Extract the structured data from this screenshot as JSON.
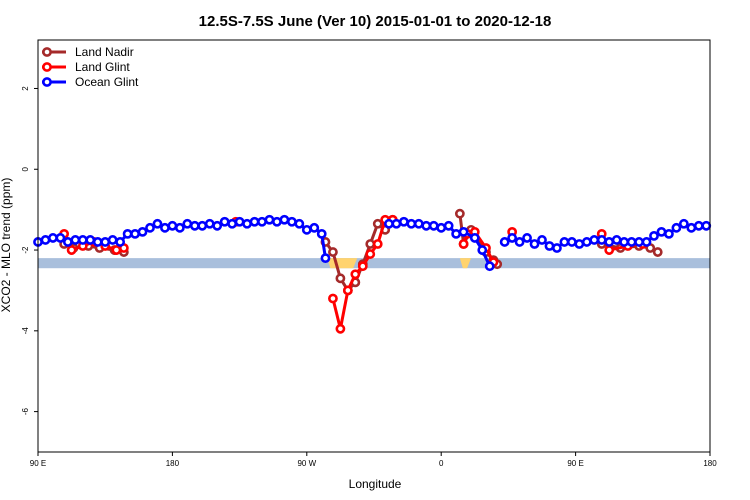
{
  "chart_data": {
    "type": "line",
    "title": "12.5S-7.5S June (Ver 10)   2015-01-01 to 2020-12-18",
    "xlabel": "Longitude",
    "ylabel": "XCO2 - MLO trend (ppm)",
    "xlim": [
      0,
      360
    ],
    "ylim": [
      -7,
      3.2
    ],
    "x_ticks": [
      {
        "value": 0,
        "label": "90 E"
      },
      {
        "value": 72,
        "label": "180"
      },
      {
        "value": 144,
        "label": "90 W"
      },
      {
        "value": 216,
        "label": "0"
      },
      {
        "value": 288,
        "label": "90 E"
      },
      {
        "value": 360,
        "label": "180"
      }
    ],
    "y_ticks": [
      {
        "value": -6,
        "label": "-6"
      },
      {
        "value": -4,
        "label": "-4"
      },
      {
        "value": -2,
        "label": "-2"
      },
      {
        "value": 0,
        "label": "0"
      },
      {
        "value": 2,
        "label": "2"
      }
    ],
    "legend_position": "top-left",
    "grid": false,
    "land_band": {
      "y_top": -2.2,
      "y_bottom": -2.45,
      "color": "#a9bfdc"
    },
    "land_mask_color": "#ffd36e",
    "land_mask_segments": [
      [
        155,
        171
      ],
      [
        226,
        232
      ]
    ],
    "series": [
      {
        "name": "Land Nadir",
        "color": "#a52a2a",
        "segments": [
          [
            [
              14,
              -1.85
            ],
            [
              19,
              -1.95
            ],
            [
              27,
              -1.9
            ],
            [
              33,
              -1.95
            ],
            [
              41,
              -2.0
            ],
            [
              46,
              -2.05
            ]
          ],
          [
            [
              154,
              -1.8
            ],
            [
              158,
              -2.05
            ],
            [
              162,
              -2.7
            ],
            [
              166,
              -3.0
            ],
            [
              170,
              -2.8
            ],
            [
              174,
              -2.35
            ],
            [
              178,
              -1.85
            ],
            [
              182,
              -1.35
            ],
            [
              186,
              -1.5
            ],
            [
              190,
              -1.25
            ]
          ],
          [
            [
              226,
              -1.1
            ],
            [
              228,
              -1.85
            ],
            [
              232,
              -1.5
            ],
            [
              240,
              -2.05
            ],
            [
              244,
              -2.25
            ],
            [
              246,
              -2.35
            ]
          ],
          [
            [
              302,
              -1.85
            ],
            [
              312,
              -1.95
            ],
            [
              322,
              -1.9
            ],
            [
              328,
              -1.95
            ],
            [
              332,
              -2.05
            ]
          ]
        ]
      },
      {
        "name": "Land Glint",
        "color": "#ff0000",
        "segments": [
          [
            [
              14,
              -1.6
            ],
            [
              18,
              -2.0
            ],
            [
              24,
              -1.9
            ],
            [
              30,
              -1.8
            ],
            [
              36,
              -1.9
            ],
            [
              42,
              -2.0
            ],
            [
              46,
              -1.95
            ]
          ],
          [
            [
              106,
              -1.3
            ]
          ],
          [
            [
              158,
              -3.2
            ],
            [
              162,
              -3.95
            ],
            [
              166,
              -3.0
            ],
            [
              170,
              -2.6
            ],
            [
              174,
              -2.4
            ],
            [
              178,
              -2.1
            ],
            [
              182,
              -1.85
            ],
            [
              186,
              -1.25
            ],
            [
              190,
              -1.25
            ]
          ],
          [
            [
              228,
              -1.85
            ],
            [
              230,
              -1.6
            ],
            [
              234,
              -1.55
            ],
            [
              240,
              -1.95
            ],
            [
              244,
              -2.3
            ]
          ],
          [
            [
              254,
              -1.55
            ]
          ],
          [
            [
              302,
              -1.6
            ],
            [
              306,
              -2.0
            ],
            [
              316,
              -1.9
            ],
            [
              324,
              -1.85
            ]
          ]
        ]
      },
      {
        "name": "Ocean Glint",
        "color": "#0000ff",
        "segments": [
          [
            [
              0,
              -1.8
            ],
            [
              4,
              -1.75
            ],
            [
              8,
              -1.7
            ],
            [
              12,
              -1.7
            ],
            [
              16,
              -1.8
            ],
            [
              20,
              -1.75
            ],
            [
              24,
              -1.75
            ],
            [
              28,
              -1.75
            ],
            [
              32,
              -1.8
            ],
            [
              36,
              -1.8
            ],
            [
              40,
              -1.75
            ],
            [
              44,
              -1.8
            ],
            [
              48,
              -1.6
            ],
            [
              52,
              -1.6
            ],
            [
              56,
              -1.55
            ],
            [
              60,
              -1.45
            ],
            [
              64,
              -1.35
            ],
            [
              68,
              -1.45
            ],
            [
              72,
              -1.4
            ],
            [
              76,
              -1.45
            ],
            [
              80,
              -1.35
            ],
            [
              84,
              -1.4
            ],
            [
              88,
              -1.4
            ],
            [
              92,
              -1.35
            ],
            [
              96,
              -1.4
            ],
            [
              100,
              -1.3
            ],
            [
              104,
              -1.35
            ],
            [
              108,
              -1.3
            ],
            [
              112,
              -1.35
            ],
            [
              116,
              -1.3
            ],
            [
              120,
              -1.3
            ],
            [
              124,
              -1.25
            ],
            [
              128,
              -1.3
            ],
            [
              132,
              -1.25
            ],
            [
              136,
              -1.3
            ],
            [
              140,
              -1.35
            ],
            [
              144,
              -1.5
            ],
            [
              148,
              -1.45
            ],
            [
              152,
              -1.6
            ],
            [
              154,
              -2.2
            ]
          ],
          [
            [
              188,
              -1.35
            ],
            [
              192,
              -1.35
            ],
            [
              196,
              -1.3
            ],
            [
              200,
              -1.35
            ],
            [
              204,
              -1.35
            ],
            [
              208,
              -1.4
            ],
            [
              212,
              -1.4
            ],
            [
              216,
              -1.45
            ],
            [
              220,
              -1.4
            ],
            [
              224,
              -1.6
            ],
            [
              228,
              -1.55
            ],
            [
              234,
              -1.7
            ],
            [
              238,
              -2.0
            ],
            [
              242,
              -2.4
            ]
          ],
          [
            [
              250,
              -1.8
            ],
            [
              254,
              -1.7
            ],
            [
              258,
              -1.8
            ],
            [
              262,
              -1.7
            ],
            [
              266,
              -1.85
            ],
            [
              270,
              -1.75
            ],
            [
              274,
              -1.9
            ],
            [
              278,
              -1.95
            ],
            [
              282,
              -1.8
            ],
            [
              286,
              -1.8
            ],
            [
              290,
              -1.85
            ],
            [
              294,
              -1.8
            ],
            [
              298,
              -1.75
            ],
            [
              302,
              -1.75
            ],
            [
              306,
              -1.8
            ],
            [
              310,
              -1.75
            ],
            [
              314,
              -1.8
            ],
            [
              318,
              -1.8
            ],
            [
              322,
              -1.8
            ],
            [
              326,
              -1.8
            ],
            [
              330,
              -1.65
            ],
            [
              334,
              -1.55
            ],
            [
              338,
              -1.6
            ],
            [
              342,
              -1.45
            ],
            [
              346,
              -1.35
            ],
            [
              350,
              -1.45
            ],
            [
              354,
              -1.4
            ],
            [
              358,
              -1.4
            ]
          ]
        ]
      }
    ]
  }
}
